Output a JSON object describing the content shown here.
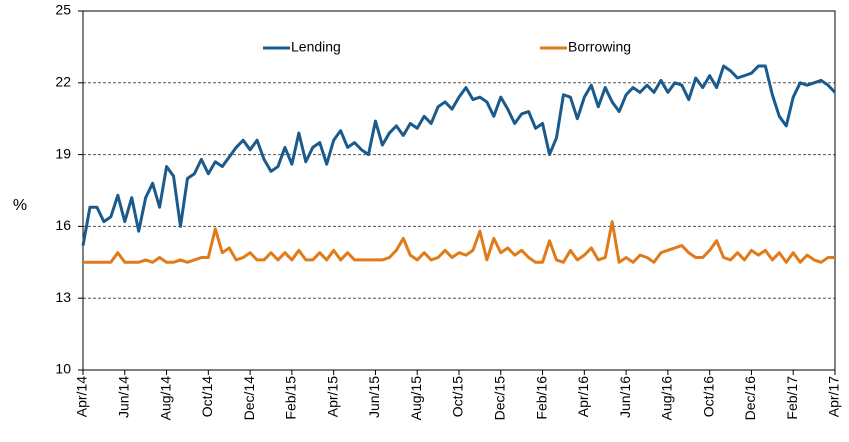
{
  "chart_data": {
    "type": "line",
    "ylabel": "%",
    "ylim": [
      10,
      25
    ],
    "yticks": [
      10,
      13,
      16,
      19,
      22,
      25
    ],
    "grid": true,
    "legend": "top",
    "categories": [
      "Apr/14",
      null,
      null,
      null,
      null,
      null,
      "Jun/14",
      null,
      null,
      null,
      null,
      null,
      "Aug/14",
      null,
      null,
      null,
      null,
      null,
      "Oct/14",
      null,
      null,
      null,
      null,
      null,
      "Dec/14",
      null,
      null,
      null,
      null,
      null,
      "Feb/15",
      null,
      null,
      null,
      null,
      null,
      "Apr/15",
      null,
      null,
      null,
      null,
      null,
      "Jun/15",
      null,
      null,
      null,
      null,
      null,
      "Aug/15",
      null,
      null,
      null,
      null,
      null,
      "Oct/15",
      null,
      null,
      null,
      null,
      null,
      "Dec/15",
      null,
      null,
      null,
      null,
      null,
      "Feb/16",
      null,
      null,
      null,
      null,
      null,
      "Apr/16",
      null,
      null,
      null,
      null,
      null,
      "Jun/16",
      null,
      null,
      null,
      null,
      null,
      "Aug/16",
      null,
      null,
      null,
      null,
      null,
      "Oct/16",
      null,
      null,
      null,
      null,
      null,
      "Dec/16",
      null,
      null,
      null,
      null,
      null,
      "Feb/17",
      null,
      null,
      null,
      null,
      null,
      "Apr/17"
    ],
    "series": [
      {
        "name": "Lending",
        "color": "#1a5a8c",
        "values": [
          15.2,
          16.8,
          16.8,
          16.2,
          16.4,
          17.3,
          16.2,
          17.2,
          15.8,
          17.2,
          17.8,
          16.8,
          18.5,
          18.1,
          16.0,
          18.0,
          18.2,
          18.8,
          18.2,
          18.7,
          18.5,
          18.9,
          19.3,
          19.6,
          19.2,
          19.6,
          18.8,
          18.3,
          18.5,
          19.3,
          18.6,
          19.9,
          18.7,
          19.3,
          19.5,
          18.6,
          19.6,
          20.0,
          19.3,
          19.5,
          19.2,
          19.0,
          20.4,
          19.4,
          19.9,
          20.2,
          19.8,
          20.3,
          20.1,
          20.6,
          20.3,
          21.0,
          21.2,
          20.9,
          21.4,
          21.8,
          21.3,
          21.4,
          21.2,
          20.6,
          21.4,
          20.9,
          20.3,
          20.7,
          20.8,
          20.1,
          20.3,
          19.0,
          19.7,
          21.5,
          21.4,
          20.5,
          21.4,
          21.9,
          21.0,
          21.8,
          21.2,
          20.8,
          21.5,
          21.8,
          21.6,
          21.9,
          21.6,
          22.1,
          21.6,
          22.0,
          21.9,
          21.3,
          22.2,
          21.8,
          22.3,
          21.8,
          22.7,
          22.5,
          22.2,
          22.3,
          22.4,
          22.7,
          22.7,
          21.5,
          20.6,
          20.2,
          21.4,
          22.0,
          21.9,
          22.0,
          22.1,
          21.9,
          21.6
        ]
      },
      {
        "name": "Borrowing",
        "color": "#e07b1a",
        "values": [
          14.5,
          14.5,
          14.5,
          14.5,
          14.5,
          14.9,
          14.5,
          14.5,
          14.5,
          14.6,
          14.5,
          14.7,
          14.5,
          14.5,
          14.6,
          14.5,
          14.6,
          14.7,
          14.7,
          15.9,
          14.9,
          15.1,
          14.6,
          14.7,
          14.9,
          14.6,
          14.6,
          14.9,
          14.6,
          14.9,
          14.6,
          15.0,
          14.6,
          14.6,
          14.9,
          14.6,
          15.0,
          14.6,
          14.9,
          14.6,
          14.6,
          14.6,
          14.6,
          14.6,
          14.7,
          15.0,
          15.5,
          14.8,
          14.6,
          14.9,
          14.6,
          14.7,
          15.0,
          14.7,
          14.9,
          14.8,
          15.0,
          15.8,
          14.6,
          15.5,
          14.9,
          15.1,
          14.8,
          15.0,
          14.7,
          14.5,
          14.5,
          15.4,
          14.6,
          14.5,
          15.0,
          14.6,
          14.8,
          15.1,
          14.6,
          14.7,
          16.2,
          14.5,
          14.7,
          14.5,
          14.8,
          14.7,
          14.5,
          14.9,
          15.0,
          15.1,
          15.2,
          14.9,
          14.7,
          14.7,
          15.0,
          15.4,
          14.7,
          14.6,
          14.9,
          14.6,
          15.0,
          14.8,
          15.0,
          14.6,
          14.9,
          14.5,
          14.9,
          14.5,
          14.8,
          14.6,
          14.5,
          14.7,
          14.7
        ]
      }
    ]
  }
}
